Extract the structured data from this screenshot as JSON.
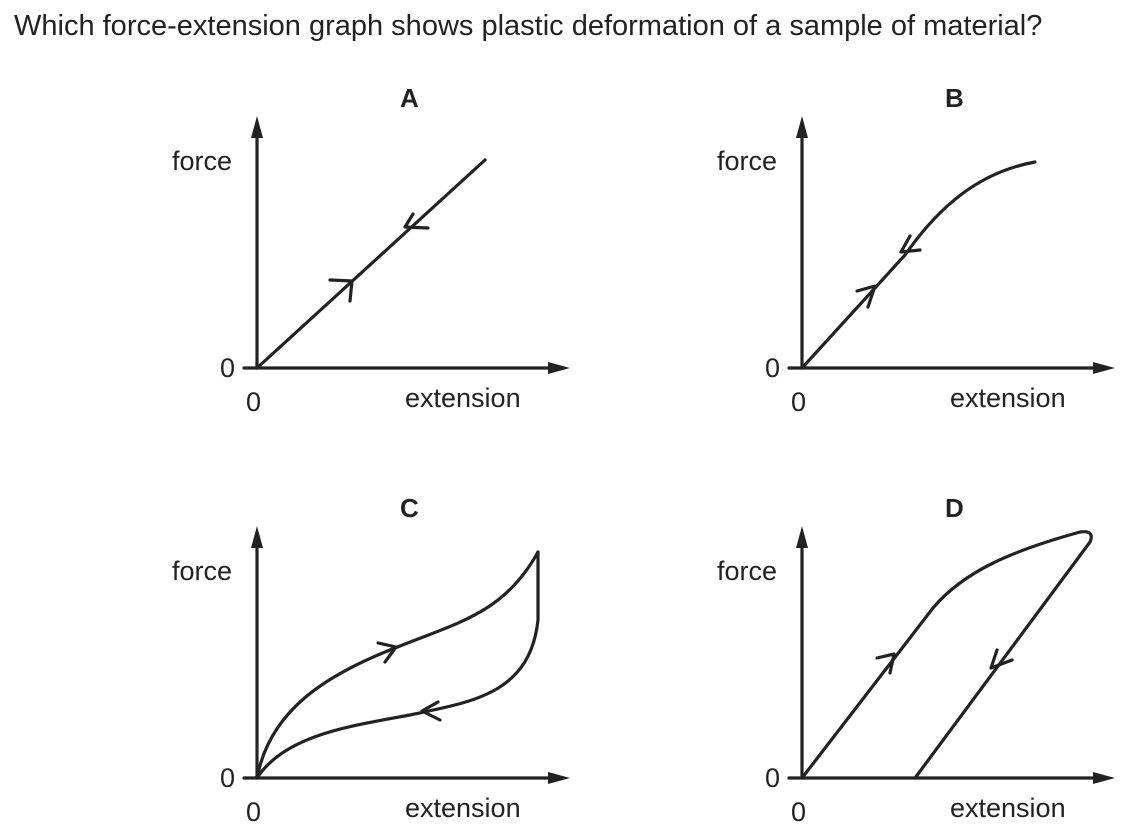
{
  "question": "Which force-extension graph shows plastic deformation of a sample of material?",
  "graphs": [
    {
      "option": "A",
      "y_label": "force",
      "x_label": "extension",
      "y_origin": "0",
      "x_origin": "0"
    },
    {
      "option": "B",
      "y_label": "force",
      "x_label": "extension",
      "y_origin": "0",
      "x_origin": "0"
    },
    {
      "option": "C",
      "y_label": "force",
      "x_label": "extension",
      "y_origin": "0",
      "x_origin": "0"
    },
    {
      "option": "D",
      "y_label": "force",
      "x_label": "extension",
      "y_origin": "0",
      "x_origin": "0"
    }
  ]
}
